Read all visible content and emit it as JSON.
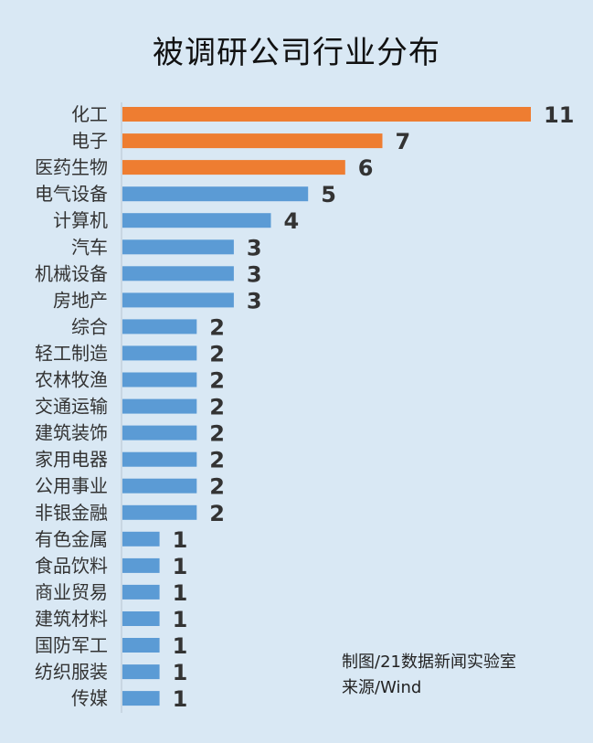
{
  "chart_data": {
    "type": "bar",
    "orientation": "horizontal",
    "title": "被调研公司行业分布",
    "categories": [
      "化工",
      "电子",
      "医药生物",
      "电气设备",
      "计算机",
      "汽车",
      "机械设备",
      "房地产",
      "综合",
      "轻工制造",
      "农林牧渔",
      "交通运输",
      "建筑装饰",
      "家用电器",
      "公用事业",
      "非银金融",
      "有色金属",
      "食品饮料",
      "商业贸易",
      "建筑材料",
      "国防军工",
      "纺织服装",
      "传媒"
    ],
    "values": [
      11,
      7,
      6,
      5,
      4,
      3,
      3,
      3,
      2,
      2,
      2,
      2,
      2,
      2,
      2,
      2,
      1,
      1,
      1,
      1,
      1,
      1,
      1
    ],
    "highlight_count": 3,
    "colors": {
      "highlight": "#ee7d31",
      "normal": "#5b9bd5"
    },
    "xlim": [
      0,
      11
    ],
    "grid": false,
    "legend": "none"
  },
  "notes": {
    "maker": "制图/21数据新闻实验室",
    "source": "来源/Wind"
  }
}
